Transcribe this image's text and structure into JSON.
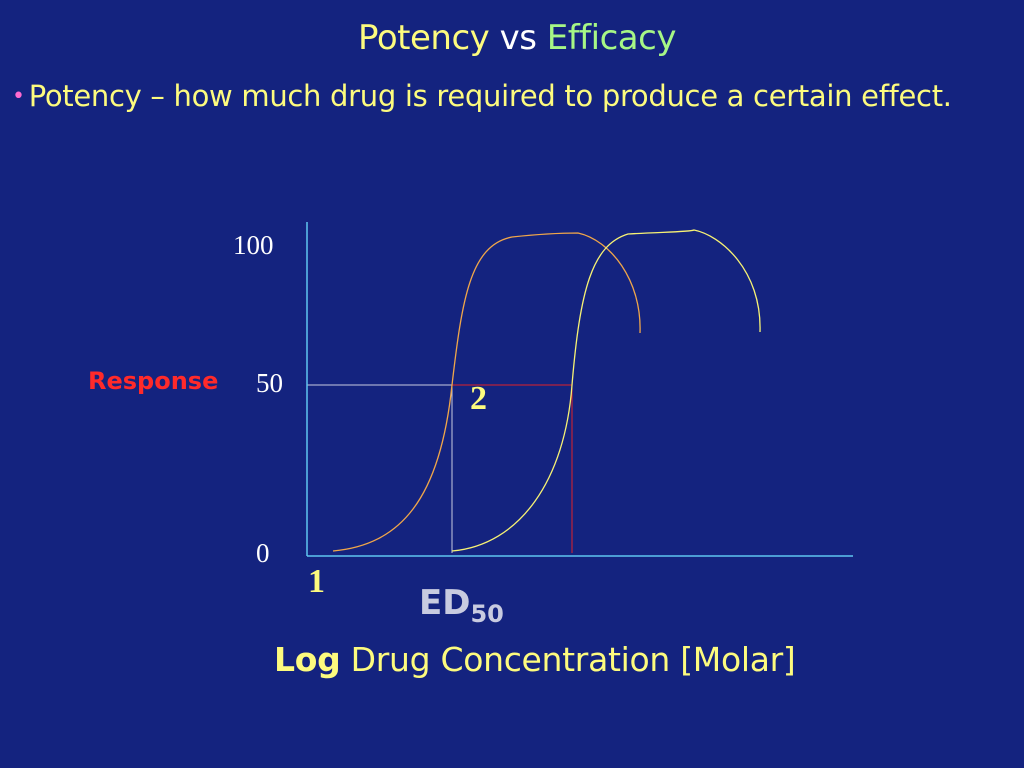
{
  "title": {
    "word1": "Potency",
    "word2": "vs",
    "word3": "Efficacy"
  },
  "bullet": {
    "text": "Potency – how much drug is required to produce a certain effect."
  },
  "axis": {
    "y_ticks": [
      "100",
      "50",
      "0"
    ],
    "y_label": "Response",
    "x_label_bold": "Log",
    "x_label_rest": "Drug Concentration [Molar]"
  },
  "markers": {
    "one": "1",
    "two": "2"
  },
  "ed50": {
    "main": "ED",
    "sub": "50"
  },
  "colors": {
    "background": "#14237f",
    "curve1": "#f0a64a",
    "curve2": "#f7f274",
    "axis": "#5fc6f0",
    "ed50_line_1": "#c8cbe0",
    "ed50_line_2": "#e0222a",
    "text_yellow": "#fdfb7e",
    "response_red": "#ff2a2a"
  }
}
